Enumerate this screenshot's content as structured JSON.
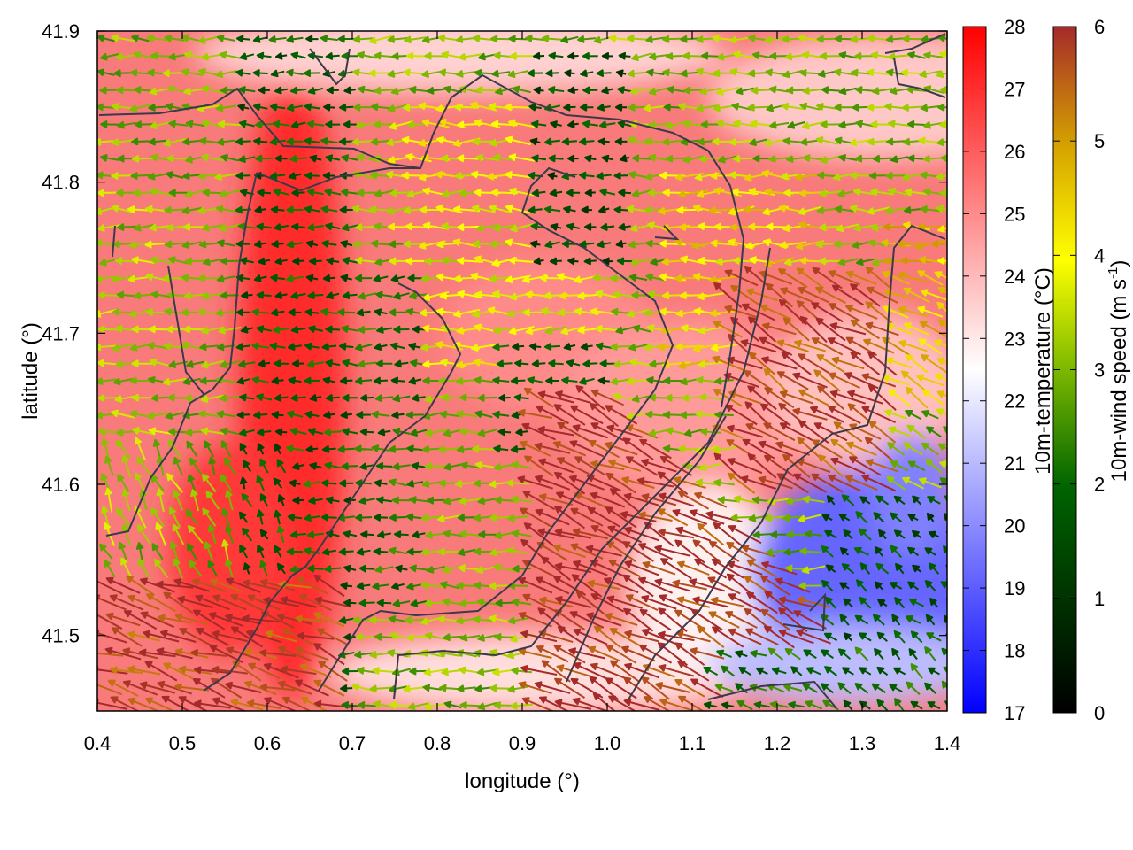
{
  "chart_data": {
    "type": "heatmap",
    "overlay": "wind-vectors",
    "xlabel": "longitude (°)",
    "ylabel": "latitude (°)",
    "xlim": [
      0.4,
      1.4
    ],
    "ylim": [
      41.45,
      41.9
    ],
    "x_ticks": [
      0.4,
      0.5,
      0.6,
      0.7,
      0.8,
      0.9,
      1.0,
      1.1,
      1.2,
      1.3,
      1.4
    ],
    "x_tick_labels": [
      "0.4",
      "0.5",
      "0.6",
      "0.7",
      "0.8",
      "0.9",
      "1.0",
      "1.1",
      "1.2",
      "1.3",
      "1.4"
    ],
    "y_ticks": [
      41.5,
      41.6,
      41.7,
      41.8,
      41.9
    ],
    "y_tick_labels": [
      "41.5",
      "41.6",
      "41.7",
      "41.8",
      "41.9"
    ],
    "grid": false,
    "temperature_colorbar": {
      "label": "10m-temperature (°C)",
      "range": [
        17,
        28
      ],
      "ticks": [
        17,
        18,
        19,
        20,
        21,
        22,
        23,
        24,
        25,
        26,
        27,
        28
      ],
      "tick_labels": [
        "17",
        "18",
        "19",
        "20",
        "21",
        "22",
        "23",
        "24",
        "25",
        "26",
        "27",
        "28"
      ],
      "colors": [
        "#0000ff",
        "#ffffff",
        "#ff0000"
      ]
    },
    "wind_colorbar": {
      "label_main": "10m-wind speed (m s",
      "label_sup": "-1",
      "label_end": ")",
      "range": [
        0,
        6
      ],
      "ticks": [
        0,
        1,
        2,
        3,
        4,
        5,
        6
      ],
      "tick_labels": [
        "0",
        "1",
        "2",
        "3",
        "4",
        "5",
        "6"
      ],
      "colors": [
        "#000000",
        "#006400",
        "#7cb800",
        "#ffff00",
        "#d4a000",
        "#b46418",
        "#a52a2a"
      ]
    },
    "temperature_regions": [
      {
        "region": "west and central",
        "temp_c": 25.5
      },
      {
        "region": "strip near lon 0.62",
        "temp_c": 27.5
      },
      {
        "region": "northern edge lat 41.88",
        "temp_c": 23
      },
      {
        "region": "southeast lon 1.15-1.4 lat 41.45-41.62",
        "temp_c": 19
      }
    ],
    "wind_regions": [
      {
        "region": "north and northeast",
        "speed": 3,
        "direction": "from east"
      },
      {
        "region": "central lon 0.75-0.95 lat 41.7-41.85",
        "speed": 4,
        "direction": "from east"
      },
      {
        "region": "column near lon 0.6-0.7",
        "speed": 1.5,
        "direction": "from east"
      },
      {
        "region": "southeast band lon 0.85-1.3 lat 41.5-41.75",
        "speed": 6,
        "direction": "from southeast"
      },
      {
        "region": "southeast corner lon 1.2-1.4 lat 41.45-41.55",
        "speed": 1.5,
        "direction": "from southeast"
      }
    ]
  }
}
